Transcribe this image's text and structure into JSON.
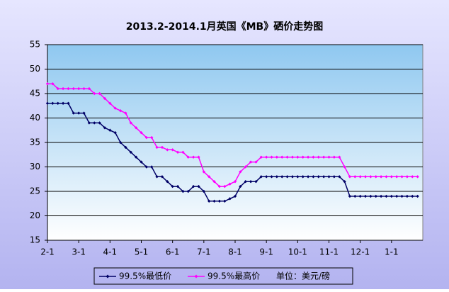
{
  "chart_data": {
    "type": "line",
    "title": "2013.2-2014.1月英国《MB》硒价走势图",
    "categories": [
      "2-1",
      null,
      null,
      null,
      null,
      null,
      "3-1",
      null,
      null,
      null,
      null,
      null,
      "4-1",
      null,
      null,
      null,
      null,
      null,
      "5-1",
      null,
      null,
      null,
      null,
      null,
      "6-1",
      null,
      null,
      null,
      null,
      null,
      "7-1",
      null,
      null,
      null,
      null,
      null,
      "8-1",
      null,
      null,
      null,
      null,
      null,
      "9-1",
      null,
      null,
      null,
      null,
      null,
      "10-1",
      null,
      null,
      null,
      null,
      null,
      "11-1",
      null,
      null,
      null,
      null,
      null,
      "12-1",
      null,
      null,
      null,
      null,
      null,
      "1-1",
      null,
      null,
      null,
      null,
      null
    ],
    "series": [
      {
        "name": "99.5%最低价",
        "color": "#000066",
        "values": [
          43,
          43,
          43,
          43,
          43,
          41,
          41,
          41,
          39,
          39,
          39,
          38,
          37.5,
          37,
          35,
          34,
          33,
          32,
          31,
          30,
          30,
          28,
          28,
          27,
          26,
          26,
          25,
          25,
          26,
          26,
          25,
          23,
          23,
          23,
          23,
          23.5,
          24,
          26,
          27,
          27,
          27,
          28,
          28,
          28,
          28,
          28,
          28,
          28,
          28,
          28,
          28,
          28,
          28,
          28,
          28,
          28,
          28,
          27,
          24,
          24,
          24,
          24,
          24,
          24,
          24,
          24,
          24,
          24,
          24,
          24,
          24,
          24
        ]
      },
      {
        "name": "99.5%最高价",
        "color": "#ff00ff",
        "values": [
          47,
          47,
          46,
          46,
          46,
          46,
          46,
          46,
          46,
          45,
          45,
          44,
          43,
          42,
          41.5,
          41,
          39,
          38,
          37,
          36,
          36,
          34,
          34,
          33.5,
          33.5,
          33,
          33,
          32,
          32,
          32,
          29,
          28,
          27,
          26,
          26,
          26.5,
          27,
          29,
          30,
          31,
          31,
          32,
          32,
          32,
          32,
          32,
          32,
          32,
          32,
          32,
          32,
          32,
          32,
          32,
          32,
          32,
          32,
          30,
          28,
          28,
          28,
          28,
          28,
          28,
          28,
          28,
          28,
          28,
          28,
          28,
          28,
          28
        ]
      }
    ],
    "unit": "单位：美元/磅",
    "ylim": [
      15,
      55
    ],
    "yticks": [
      15,
      20,
      25,
      30,
      35,
      40,
      45,
      50,
      55
    ],
    "grid": true
  }
}
